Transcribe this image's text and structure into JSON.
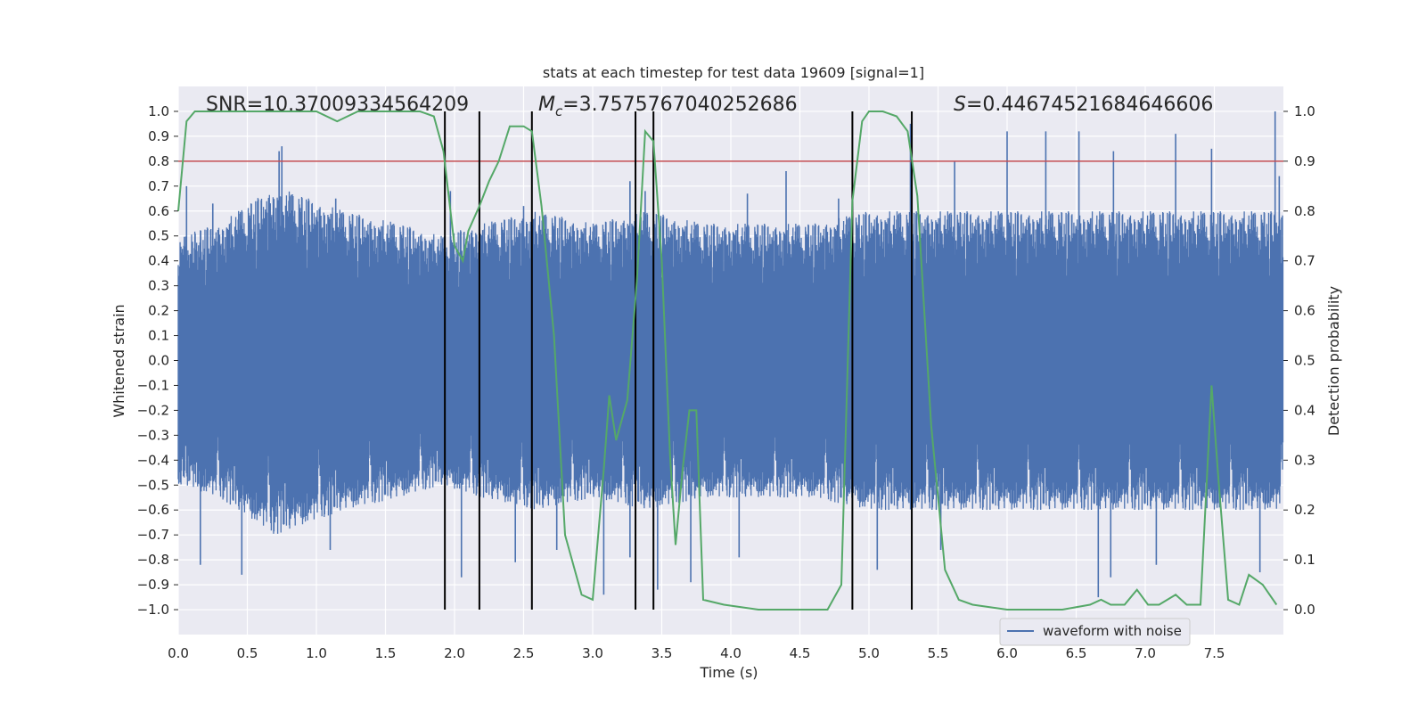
{
  "chart_data": {
    "type": "line",
    "title": "stats at each timestep for test data 19609 [signal=1]",
    "xlabel": "Time (s)",
    "ylabel_left": "Whitened strain",
    "ylabel_right": "Detection probability",
    "xlim": [
      0.0,
      8.0
    ],
    "ylim_left": [
      -1.1,
      1.1
    ],
    "ylim_right": [
      -0.05,
      1.05
    ],
    "x_ticks": [
      0.0,
      0.5,
      1.0,
      1.5,
      2.0,
      2.5,
      3.0,
      3.5,
      4.0,
      4.5,
      5.0,
      5.5,
      6.0,
      6.5,
      7.0,
      7.5
    ],
    "y_ticks_left": [
      -1.0,
      -0.9,
      -0.8,
      -0.7,
      -0.6,
      -0.5,
      -0.4,
      -0.3,
      -0.2,
      -0.1,
      0.0,
      0.1,
      0.2,
      0.3,
      0.4,
      0.5,
      0.6,
      0.7,
      0.8,
      0.9,
      1.0
    ],
    "y_ticks_right": [
      0.0,
      0.1,
      0.2,
      0.3,
      0.4,
      0.5,
      0.6,
      0.7,
      0.8,
      0.9,
      1.0
    ],
    "annotations": {
      "snr": "SNR=10.37009334564209",
      "mc_symbol": "M",
      "mc_sub": "c",
      "mc_value": "=3.7575767040252686",
      "s_symbol": "S",
      "s_value": "=0.44674521684646606"
    },
    "threshold": {
      "value": 0.9,
      "color": "#c44e52"
    },
    "vertical_lines": [
      1.93,
      2.18,
      2.56,
      3.31,
      3.44,
      4.88,
      5.31
    ],
    "waveform": {
      "name": "waveform with noise",
      "color": "#4c72b0",
      "envelope_hi": [
        [
          0.0,
          0.5
        ],
        [
          0.3,
          0.55
        ],
        [
          0.7,
          0.7
        ],
        [
          1.2,
          0.6
        ],
        [
          1.6,
          0.55
        ],
        [
          1.9,
          0.5
        ],
        [
          2.2,
          0.55
        ],
        [
          2.6,
          0.6
        ],
        [
          3.0,
          0.55
        ],
        [
          3.4,
          0.6
        ],
        [
          3.8,
          0.55
        ],
        [
          4.2,
          0.55
        ],
        [
          4.6,
          0.55
        ],
        [
          5.0,
          0.6
        ],
        [
          5.4,
          0.6
        ],
        [
          5.8,
          0.6
        ],
        [
          6.2,
          0.6
        ],
        [
          6.6,
          0.6
        ],
        [
          7.0,
          0.6
        ],
        [
          7.4,
          0.6
        ],
        [
          8.0,
          0.6
        ]
      ],
      "spikes_hi": [
        [
          0.06,
          0.7
        ],
        [
          0.25,
          0.63
        ],
        [
          0.73,
          0.84
        ],
        [
          0.75,
          0.86
        ],
        [
          0.83,
          0.66
        ],
        [
          1.14,
          0.65
        ],
        [
          1.97,
          0.68
        ],
        [
          2.5,
          0.62
        ],
        [
          3.27,
          0.72
        ],
        [
          3.38,
          0.68
        ],
        [
          4.12,
          0.67
        ],
        [
          4.4,
          0.76
        ],
        [
          4.78,
          0.65
        ],
        [
          5.3,
          0.95
        ],
        [
          5.62,
          0.8
        ],
        [
          6.0,
          0.92
        ],
        [
          6.28,
          0.92
        ],
        [
          6.52,
          0.92
        ],
        [
          6.77,
          0.84
        ],
        [
          7.22,
          0.91
        ],
        [
          7.48,
          0.85
        ],
        [
          7.94,
          1.0
        ],
        [
          7.97,
          0.74
        ]
      ],
      "spikes_lo": [
        [
          0.16,
          -0.82
        ],
        [
          0.46,
          -0.86
        ],
        [
          1.1,
          -0.76
        ],
        [
          2.05,
          -0.87
        ],
        [
          2.44,
          -0.81
        ],
        [
          2.74,
          -0.76
        ],
        [
          3.08,
          -0.94
        ],
        [
          3.27,
          -0.79
        ],
        [
          3.47,
          -0.92
        ],
        [
          3.71,
          -0.89
        ],
        [
          4.06,
          -0.79
        ],
        [
          5.06,
          -0.84
        ],
        [
          5.52,
          -0.76
        ],
        [
          6.66,
          -0.95
        ],
        [
          6.75,
          -0.87
        ],
        [
          7.08,
          -0.82
        ],
        [
          7.83,
          -0.85
        ]
      ]
    },
    "detection_probability": {
      "color": "#55a868",
      "x": [
        0.0,
        0.06,
        0.12,
        0.25,
        0.5,
        0.75,
        1.0,
        1.15,
        1.3,
        1.5,
        1.75,
        1.85,
        1.92,
        2.0,
        2.06,
        2.1,
        2.18,
        2.25,
        2.32,
        2.4,
        2.5,
        2.56,
        2.63,
        2.72,
        2.8,
        2.92,
        3.0,
        3.08,
        3.12,
        3.17,
        3.25,
        3.32,
        3.38,
        3.44,
        3.5,
        3.56,
        3.6,
        3.65,
        3.7,
        3.75,
        3.8,
        3.95,
        4.2,
        4.5,
        4.7,
        4.8,
        4.88,
        4.95,
        5.0,
        5.1,
        5.2,
        5.28,
        5.35,
        5.45,
        5.55,
        5.65,
        5.75,
        6.0,
        6.4,
        6.6,
        6.68,
        6.75,
        6.85,
        6.94,
        7.02,
        7.1,
        7.22,
        7.3,
        7.4,
        7.48,
        7.53,
        7.6,
        7.68,
        7.75,
        7.85,
        7.95
      ],
      "y": [
        0.8,
        0.98,
        1.0,
        1.0,
        1.0,
        1.0,
        1.0,
        0.98,
        1.0,
        1.0,
        1.0,
        0.99,
        0.92,
        0.73,
        0.7,
        0.76,
        0.81,
        0.86,
        0.9,
        0.97,
        0.97,
        0.96,
        0.81,
        0.55,
        0.15,
        0.03,
        0.02,
        0.28,
        0.43,
        0.34,
        0.42,
        0.66,
        0.96,
        0.94,
        0.7,
        0.31,
        0.13,
        0.28,
        0.4,
        0.4,
        0.02,
        0.01,
        0.0,
        0.0,
        0.0,
        0.05,
        0.82,
        0.98,
        1.0,
        1.0,
        0.99,
        0.96,
        0.83,
        0.37,
        0.08,
        0.02,
        0.01,
        0.0,
        0.0,
        0.01,
        0.02,
        0.01,
        0.01,
        0.04,
        0.01,
        0.01,
        0.03,
        0.01,
        0.01,
        0.45,
        0.26,
        0.02,
        0.01,
        0.07,
        0.05,
        0.01
      ]
    },
    "legend": {
      "placement": "lower-right",
      "entries": [
        "waveform with noise"
      ]
    }
  }
}
